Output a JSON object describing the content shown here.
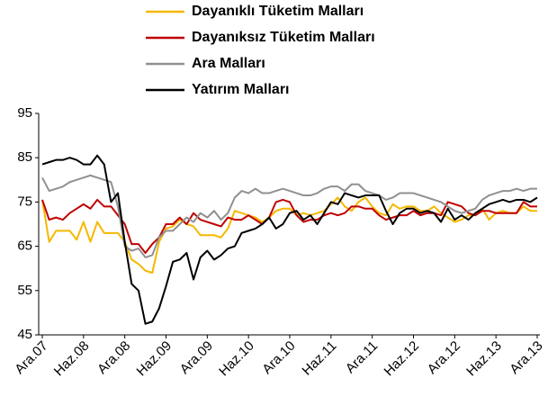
{
  "chart_data": {
    "type": "line",
    "categories": [
      "Ara.07",
      null,
      null,
      null,
      null,
      null,
      "Haz.08",
      null,
      null,
      null,
      null,
      null,
      "Ara.08",
      null,
      null,
      null,
      null,
      null,
      "Haz.09",
      null,
      null,
      null,
      null,
      null,
      "Ara.09",
      null,
      null,
      null,
      null,
      null,
      "Haz.10",
      null,
      null,
      null,
      null,
      null,
      "Ara.10",
      null,
      null,
      null,
      null,
      null,
      "Haz.11",
      null,
      null,
      null,
      null,
      null,
      "Ara.11",
      null,
      null,
      null,
      null,
      null,
      "Haz.12",
      null,
      null,
      null,
      null,
      null,
      "Ara.12",
      null,
      null,
      null,
      null,
      null,
      "Haz.13",
      null,
      null,
      null,
      null,
      null,
      "Ara.13"
    ],
    "series": [
      {
        "name": "Dayanıklı Tüketim Malları",
        "color": "#f5b800",
        "values": [
          75.5,
          66,
          68.5,
          68.5,
          68.5,
          66.5,
          70.5,
          66,
          70.5,
          68,
          68,
          68,
          66,
          62,
          61,
          59.5,
          59,
          66,
          69,
          69.5,
          71,
          70,
          69.5,
          67.5,
          67.5,
          67.5,
          67,
          69,
          73,
          72.5,
          72,
          71.5,
          70.5,
          71.5,
          73,
          73.5,
          73.5,
          72,
          72.5,
          72,
          72.5,
          73,
          74.5,
          76,
          74,
          73,
          75,
          76,
          74,
          72.5,
          72,
          74.5,
          73.5,
          74,
          74,
          73,
          73,
          74,
          72.5,
          71.5,
          70.5,
          71,
          72,
          72,
          73.5,
          71,
          72.5,
          73,
          72.5,
          72.5,
          74,
          73,
          73
        ]
      },
      {
        "name": "Dayanıksız Tüketim Malları",
        "color": "#c00000",
        "values": [
          75.5,
          71,
          71.5,
          71,
          72.5,
          73.5,
          74.5,
          73.5,
          75.5,
          74,
          74,
          72,
          70,
          65.5,
          65.5,
          63.5,
          65.5,
          67,
          70,
          70,
          71.5,
          70,
          72.5,
          71,
          70.5,
          70,
          69.5,
          71.5,
          71,
          71,
          72,
          71,
          70,
          71.5,
          75,
          75.5,
          75,
          72,
          70.5,
          71,
          71,
          72,
          72.5,
          72,
          72.5,
          74,
          74,
          73.5,
          73.5,
          72,
          71,
          71.5,
          72,
          72,
          73,
          72,
          72.5,
          72.5,
          72,
          75,
          74.5,
          74,
          72.5,
          72,
          73,
          73,
          72.5,
          72.5,
          72.5,
          72.5,
          75,
          74,
          74
        ]
      },
      {
        "name": "Ara Malları",
        "color": "#909090",
        "values": [
          80.5,
          77.5,
          78,
          78.5,
          79.5,
          80,
          80.5,
          81,
          80.5,
          80,
          79.5,
          74,
          65,
          64,
          64.5,
          62.5,
          63,
          67,
          68.5,
          68.5,
          70,
          71.5,
          70.5,
          72.5,
          71.5,
          73,
          71,
          72.5,
          76,
          77.5,
          77,
          78,
          77,
          77,
          77.5,
          78,
          77.5,
          77,
          76.5,
          76.5,
          77,
          78,
          78.5,
          78.5,
          77.5,
          79,
          79,
          77.5,
          77,
          76.5,
          75.5,
          76,
          77,
          77,
          77,
          76.5,
          76,
          75.5,
          75,
          74,
          73,
          72.5,
          73,
          73.5,
          75.5,
          76.5,
          77,
          77.5,
          77.5,
          78,
          77.5,
          78,
          78
        ]
      },
      {
        "name": "Yatırım Malları",
        "color": "#000000",
        "values": [
          83.5,
          84,
          84.5,
          84.5,
          85,
          84.5,
          83.5,
          83.5,
          85.5,
          83.5,
          75,
          77,
          66,
          56.5,
          55,
          47.5,
          48,
          51,
          56,
          61.5,
          62,
          63.5,
          57.5,
          62.5,
          64,
          62,
          63,
          64.5,
          65,
          68,
          68.5,
          69,
          70,
          71.5,
          69,
          70,
          72.5,
          73,
          71,
          72,
          70,
          72.5,
          75,
          74.5,
          77,
          76.5,
          76,
          76.5,
          76.5,
          76.5,
          73,
          70,
          72.5,
          73.5,
          73.5,
          72.5,
          73,
          72.5,
          70.5,
          73.5,
          71,
          72,
          71,
          72.5,
          73.5,
          74.5,
          75,
          75.5,
          75,
          75.5,
          75.5,
          75,
          76
        ]
      }
    ],
    "ylim": [
      45,
      95
    ],
    "yticks": [
      45,
      55,
      65,
      75,
      85,
      95
    ]
  }
}
